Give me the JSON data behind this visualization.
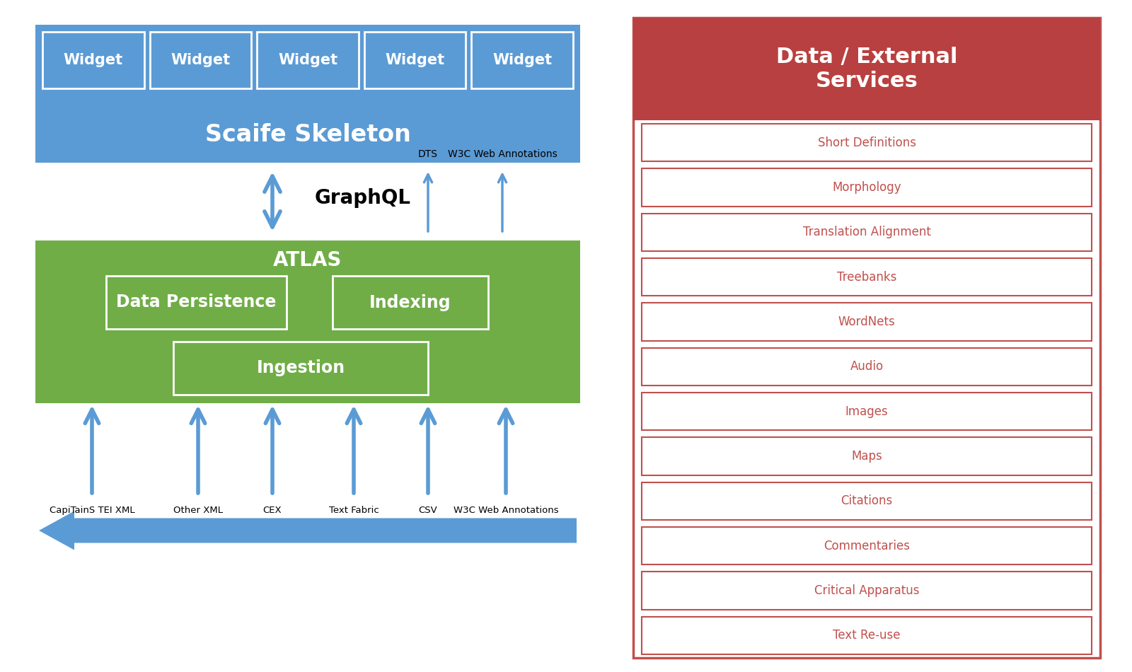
{
  "bg_color": "#ffffff",
  "blue_skeleton_color": "#5b9bd5",
  "green_atlas_color": "#70ad47",
  "widget_labels": [
    "Widget",
    "Widget",
    "Widget",
    "Widget",
    "Widget"
  ],
  "skeleton_label": "Scaife Skeleton",
  "graphql_label": "GraphQL",
  "atlas_label": "ATLAS",
  "data_persistence_label": "Data Persistence",
  "indexing_label": "Indexing",
  "ingestion_label": "Ingestion",
  "bottom_arrow_labels": [
    "CapiTainS TEI XML",
    "Other XML",
    "CEX",
    "Text Fabric",
    "CSV",
    "W3C Web Annotations"
  ],
  "dts_label": "DTS",
  "w3c_label": "W3C Web Annotations",
  "arrow_color": "#5b9bd5",
  "right_panel_border": "#c0504d",
  "right_panel_header_color": "#b94040",
  "right_panel_title": "Data / External\nServices",
  "right_panel_items": [
    "Short Definitions",
    "Morphology",
    "Translation Alignment",
    "Treebanks",
    "WordNets",
    "Audio",
    "Images",
    "Maps",
    "Citations",
    "Commentaries",
    "Critical Apparatus",
    "Text Re-use"
  ],
  "right_panel_item_text_color": "#c0504d",
  "right_panel_item_border": "#c0504d"
}
